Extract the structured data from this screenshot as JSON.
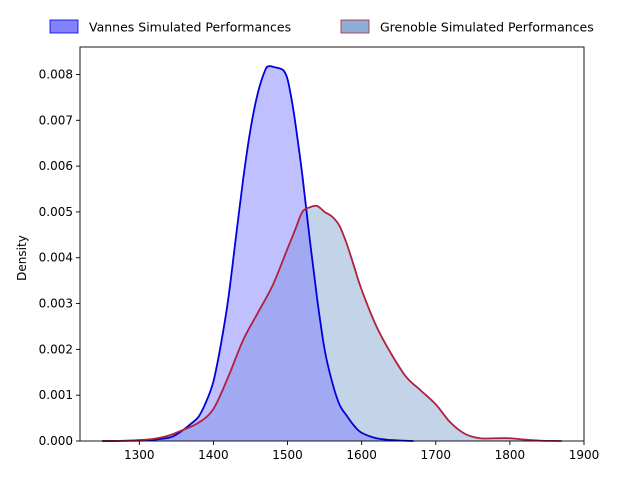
{
  "chart_data": {
    "type": "area",
    "title": "",
    "xlabel": "",
    "ylabel": "Density",
    "xlim": [
      1220,
      1900
    ],
    "ylim": [
      0,
      0.0086
    ],
    "xticks": [
      1300,
      1400,
      1500,
      1600,
      1700,
      1800,
      1900
    ],
    "yticks": [
      0.0,
      0.001,
      0.002,
      0.003,
      0.004,
      0.005,
      0.006,
      0.007,
      0.008
    ],
    "ytick_labels": [
      "0.000",
      "0.001",
      "0.002",
      "0.003",
      "0.004",
      "0.005",
      "0.006",
      "0.007",
      "0.008"
    ],
    "grid": false,
    "legend_position": "top, outside above plot",
    "series": [
      {
        "name": "Vannes Simulated Performances",
        "line_color": "#0000dd",
        "fill_color": "#7b7bff",
        "fill_opacity": 0.48,
        "x": [
          1250,
          1300,
          1320,
          1340,
          1350,
          1360,
          1370,
          1380,
          1390,
          1400,
          1410,
          1420,
          1430,
          1440,
          1450,
          1460,
          1470,
          1475,
          1480,
          1485,
          1490,
          1495,
          1500,
          1505,
          1510,
          1520,
          1530,
          1540,
          1550,
          1560,
          1570,
          1580,
          1590,
          1600,
          1620,
          1640,
          1660,
          1670
        ],
        "y": [
          0,
          1e-05,
          3e-05,
          7e-05,
          0.00014,
          0.00025,
          0.00038,
          0.00053,
          0.00085,
          0.0013,
          0.0021,
          0.0031,
          0.0044,
          0.0057,
          0.0068,
          0.0076,
          0.0081,
          0.00818,
          0.00817,
          0.00815,
          0.00813,
          0.00808,
          0.0079,
          0.0075,
          0.007,
          0.0058,
          0.0044,
          0.0031,
          0.002,
          0.0013,
          0.0008,
          0.00055,
          0.00033,
          0.00018,
          6e-05,
          2e-05,
          5e-06,
          0
        ]
      },
      {
        "name": "Grenoble Simulated Performances",
        "line_color": "#b0213c",
        "fill_color": "#88aad4",
        "fill_opacity": 0.5,
        "x": [
          1250,
          1280,
          1300,
          1320,
          1340,
          1360,
          1380,
          1400,
          1420,
          1440,
          1460,
          1480,
          1500,
          1510,
          1520,
          1530,
          1540,
          1550,
          1560,
          1570,
          1580,
          1590,
          1600,
          1620,
          1640,
          1660,
          1680,
          1700,
          1720,
          1740,
          1760,
          1780,
          1800,
          1820,
          1840,
          1860,
          1870
        ],
        "y": [
          0,
          5e-06,
          2e-05,
          5e-05,
          0.00012,
          0.00025,
          0.0004,
          0.0007,
          0.0014,
          0.0022,
          0.0028,
          0.0034,
          0.0042,
          0.0046,
          0.005,
          0.0051,
          0.00513,
          0.005,
          0.0049,
          0.0047,
          0.0043,
          0.0038,
          0.0033,
          0.0025,
          0.0019,
          0.0014,
          0.0011,
          0.0008,
          0.0004,
          0.00015,
          6e-05,
          6e-05,
          6e-05,
          3e-05,
          8e-06,
          2e-06,
          0
        ]
      }
    ]
  }
}
